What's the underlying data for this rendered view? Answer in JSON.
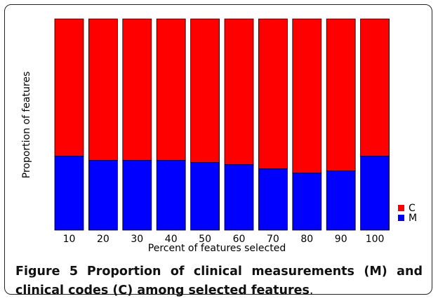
{
  "colors": {
    "M": "#0000ff",
    "C": "#ff0000"
  },
  "chart_data": {
    "type": "bar",
    "stacked": true,
    "title": "",
    "xlabel": "Percent of features selected",
    "ylabel": "Proportion of features",
    "ylim": [
      0,
      1
    ],
    "categories": [
      "10",
      "20",
      "30",
      "40",
      "50",
      "60",
      "70",
      "80",
      "90",
      "100"
    ],
    "series": [
      {
        "name": "M",
        "values": [
          0.35,
          0.33,
          0.33,
          0.33,
          0.32,
          0.31,
          0.29,
          0.27,
          0.28,
          0.35
        ]
      },
      {
        "name": "C",
        "values": [
          0.65,
          0.67,
          0.67,
          0.67,
          0.68,
          0.69,
          0.71,
          0.73,
          0.72,
          0.65
        ]
      }
    ],
    "legend": {
      "position": "bottom-right",
      "entries": [
        "C",
        "M"
      ]
    }
  },
  "caption": {
    "label": "Figure 5",
    "bold_text": "Proportion of clinical measurements (M) and clinical codes (C) among selected features",
    "end": "."
  }
}
